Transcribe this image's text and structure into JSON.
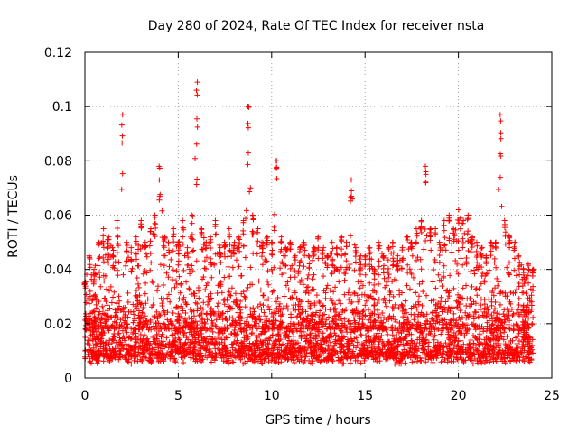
{
  "chart_data": {
    "type": "scatter",
    "title": "Day 280 of 2024, Rate Of TEC Index for receiver nsta",
    "xlabel": "GPS time / hours",
    "ylabel": "ROTI / TECUs",
    "xlim": [
      0,
      25
    ],
    "ylim": [
      0,
      0.12
    ],
    "x_ticks": [
      "0",
      "5",
      "10",
      "15",
      "20",
      "25"
    ],
    "y_ticks": [
      "0",
      "0.02",
      "0.04",
      "0.06",
      "0.08",
      "0.1",
      "0.12"
    ],
    "grid": true,
    "legend": "none",
    "marker": "plus",
    "color": "#ff0000",
    "series": [
      {
        "x": [
          0.0,
          0.25,
          0.5,
          0.75,
          1.0,
          1.25,
          1.5,
          1.75,
          2.0,
          2.25,
          2.5,
          2.75,
          3.0,
          3.25,
          3.5,
          3.75,
          4.0,
          4.25,
          4.5,
          4.75,
          5.0,
          5.25,
          5.5,
          5.75,
          6.0,
          6.25,
          6.5,
          6.75,
          7.0,
          7.25,
          7.5,
          7.75,
          8.0,
          8.25,
          8.5,
          8.75,
          9.0,
          9.25,
          9.5,
          9.75,
          10.0,
          10.25,
          10.5,
          10.75,
          11.0,
          11.25,
          11.5,
          11.75,
          12.0,
          12.25,
          12.5,
          12.75,
          13.0,
          13.25,
          13.5,
          13.75,
          14.0,
          14.25,
          14.5,
          14.75,
          15.0,
          15.25,
          15.5,
          15.75,
          16.0,
          16.25,
          16.5,
          16.75,
          17.0,
          17.25,
          17.5,
          17.75,
          18.0,
          18.25,
          18.5,
          18.75,
          19.0,
          19.25,
          19.5,
          19.75,
          20.0,
          20.25,
          20.5,
          20.75,
          21.0,
          21.25,
          21.5,
          21.75,
          22.0,
          22.25,
          22.5,
          22.75,
          23.0,
          23.25,
          23.5,
          23.75,
          24.0
        ],
        "y": [
          0.035,
          0.045,
          0.04,
          0.05,
          0.055,
          0.052,
          0.048,
          0.058,
          0.097,
          0.05,
          0.048,
          0.052,
          0.058,
          0.05,
          0.055,
          0.06,
          0.078,
          0.052,
          0.05,
          0.055,
          0.05,
          0.058,
          0.048,
          0.06,
          0.109,
          0.055,
          0.05,
          0.052,
          0.058,
          0.048,
          0.05,
          0.055,
          0.05,
          0.052,
          0.058,
          0.1,
          0.06,
          0.055,
          0.05,
          0.052,
          0.05,
          0.08,
          0.052,
          0.048,
          0.05,
          0.045,
          0.048,
          0.05,
          0.045,
          0.048,
          0.052,
          0.048,
          0.045,
          0.05,
          0.048,
          0.052,
          0.05,
          0.073,
          0.048,
          0.045,
          0.045,
          0.048,
          0.04,
          0.05,
          0.045,
          0.048,
          0.05,
          0.045,
          0.048,
          0.052,
          0.05,
          0.055,
          0.058,
          0.078,
          0.055,
          0.055,
          0.05,
          0.058,
          0.06,
          0.055,
          0.062,
          0.058,
          0.06,
          0.052,
          0.05,
          0.048,
          0.045,
          0.05,
          0.05,
          0.097,
          0.058,
          0.052,
          0.05,
          0.045,
          0.04,
          0.042,
          0.04
        ]
      }
    ]
  }
}
